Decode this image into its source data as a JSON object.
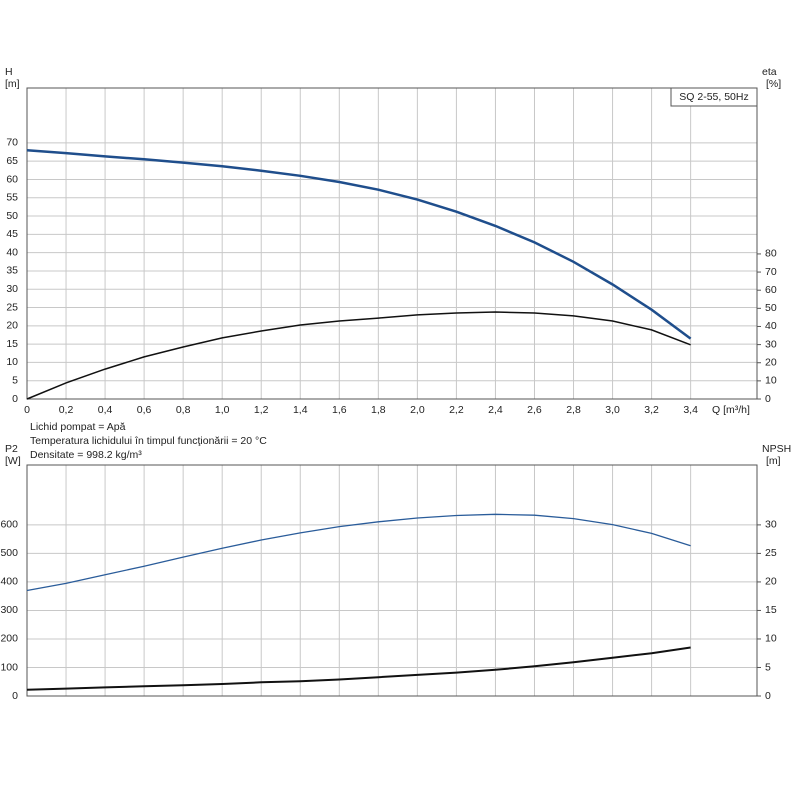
{
  "chart_data": [
    {
      "type": "line",
      "title": "SQ 2-55, 50Hz",
      "xlabel": "Q [m³/h]",
      "ylabel": "H",
      "yunit": "[m]",
      "y2label": "eta",
      "y2unit": "[%]",
      "notes": [
        "Lichid pompat = Apă",
        "Temperatura lichidului în timpul funcţionării = 20 °C",
        "Densitate = 998.2 kg/m³"
      ],
      "show_xtick_labels": true,
      "x": [
        0,
        0.2,
        0.4,
        0.6,
        0.8,
        1.0,
        1.2,
        1.4,
        1.6,
        1.8,
        2.0,
        2.2,
        2.4,
        2.6,
        2.8,
        3.0,
        3.2,
        3.4
      ],
      "series": [
        {
          "color": "#1f4e8c",
          "width": 2.5,
          "values": [
            68,
            67.2,
            66.3,
            65.5,
            64.6,
            63.6,
            62.4,
            61,
            59.3,
            57.2,
            54.5,
            51.2,
            47.3,
            42.8,
            37.5,
            31.3,
            24.4,
            16.5
          ]
        },
        {
          "color": "#111111",
          "width": 1.5,
          "axis": "y2",
          "values": [
            0,
            8.9,
            16.5,
            23.2,
            28.7,
            33.7,
            37.5,
            40.8,
            43,
            44.6,
            46.4,
            47.4,
            48,
            47.4,
            45.8,
            43,
            38.1,
            29.9
          ]
        }
      ],
      "xlim": [
        0,
        3.74
      ],
      "xticks": [
        0,
        {
          "value": 0.2,
          "label": "0,2"
        },
        {
          "value": 0.4,
          "label": "0,4"
        },
        {
          "value": 0.6,
          "label": "0,6"
        },
        {
          "value": 0.8,
          "label": "0,8"
        },
        {
          "value": 1.0,
          "label": "1,0"
        },
        {
          "value": 1.2,
          "label": "1,2"
        },
        {
          "value": 1.4,
          "label": "1,4"
        },
        {
          "value": 1.6,
          "label": "1,6"
        },
        {
          "value": 1.8,
          "label": "1,8"
        },
        {
          "value": 2.0,
          "label": "2,0"
        },
        {
          "value": 2.2,
          "label": "2,2"
        },
        {
          "value": 2.4,
          "label": "2,4"
        },
        {
          "value": 2.6,
          "label": "2,6"
        },
        {
          "value": 2.8,
          "label": "2,8"
        },
        {
          "value": 3.0,
          "label": "3,0"
        },
        {
          "value": 3.2,
          "label": "3,2"
        },
        {
          "value": 3.4,
          "label": "3,4"
        }
      ],
      "ylim": [
        0,
        85
      ],
      "yticks": [
        0,
        5,
        10,
        15,
        20,
        25,
        30,
        35,
        40,
        45,
        50,
        55,
        60,
        65,
        70
      ],
      "y2lim": [
        0,
        171.5
      ],
      "y2ticks": [
        0,
        10,
        20,
        30,
        40,
        50,
        60,
        70,
        80
      ],
      "grid": true
    },
    {
      "type": "line",
      "ylabel": "P2",
      "yunit": "[W]",
      "y2label": "NPSH",
      "y2unit": "[m]",
      "show_xtick_labels": false,
      "x": [
        0,
        0.2,
        0.4,
        0.6,
        0.8,
        1.0,
        1.2,
        1.4,
        1.6,
        1.8,
        2.0,
        2.2,
        2.4,
        2.6,
        2.8,
        3.0,
        3.2,
        3.4
      ],
      "series": [
        {
          "color": "#2a5c9a",
          "width": 1.3,
          "values": [
            370,
            395,
            425,
            455,
            487,
            518,
            547,
            572,
            594,
            611,
            624,
            633,
            637,
            634,
            622,
            601,
            570,
            527
          ]
        },
        {
          "color": "#111111",
          "width": 2,
          "axis": "y2",
          "values": [
            1.1,
            1.3,
            1.5,
            1.7,
            1.9,
            2.1,
            2.4,
            2.6,
            2.9,
            3.3,
            3.7,
            4.1,
            4.6,
            5.2,
            5.9,
            6.7,
            7.5,
            8.5
          ]
        }
      ],
      "xlim": [
        0,
        3.74
      ],
      "xticks": [
        0,
        0.2,
        0.4,
        0.6,
        0.8,
        1.0,
        1.2,
        1.4,
        1.6,
        1.8,
        2.0,
        2.2,
        2.4,
        2.6,
        2.8,
        3.0,
        3.2,
        3.4
      ],
      "ylim": [
        0,
        810
      ],
      "yticks": [
        0,
        100,
        200,
        300,
        400,
        500,
        600
      ],
      "y2lim": [
        0,
        40.5
      ],
      "y2ticks": [
        0,
        5,
        10,
        15,
        20,
        25,
        30
      ],
      "grid": true
    }
  ]
}
